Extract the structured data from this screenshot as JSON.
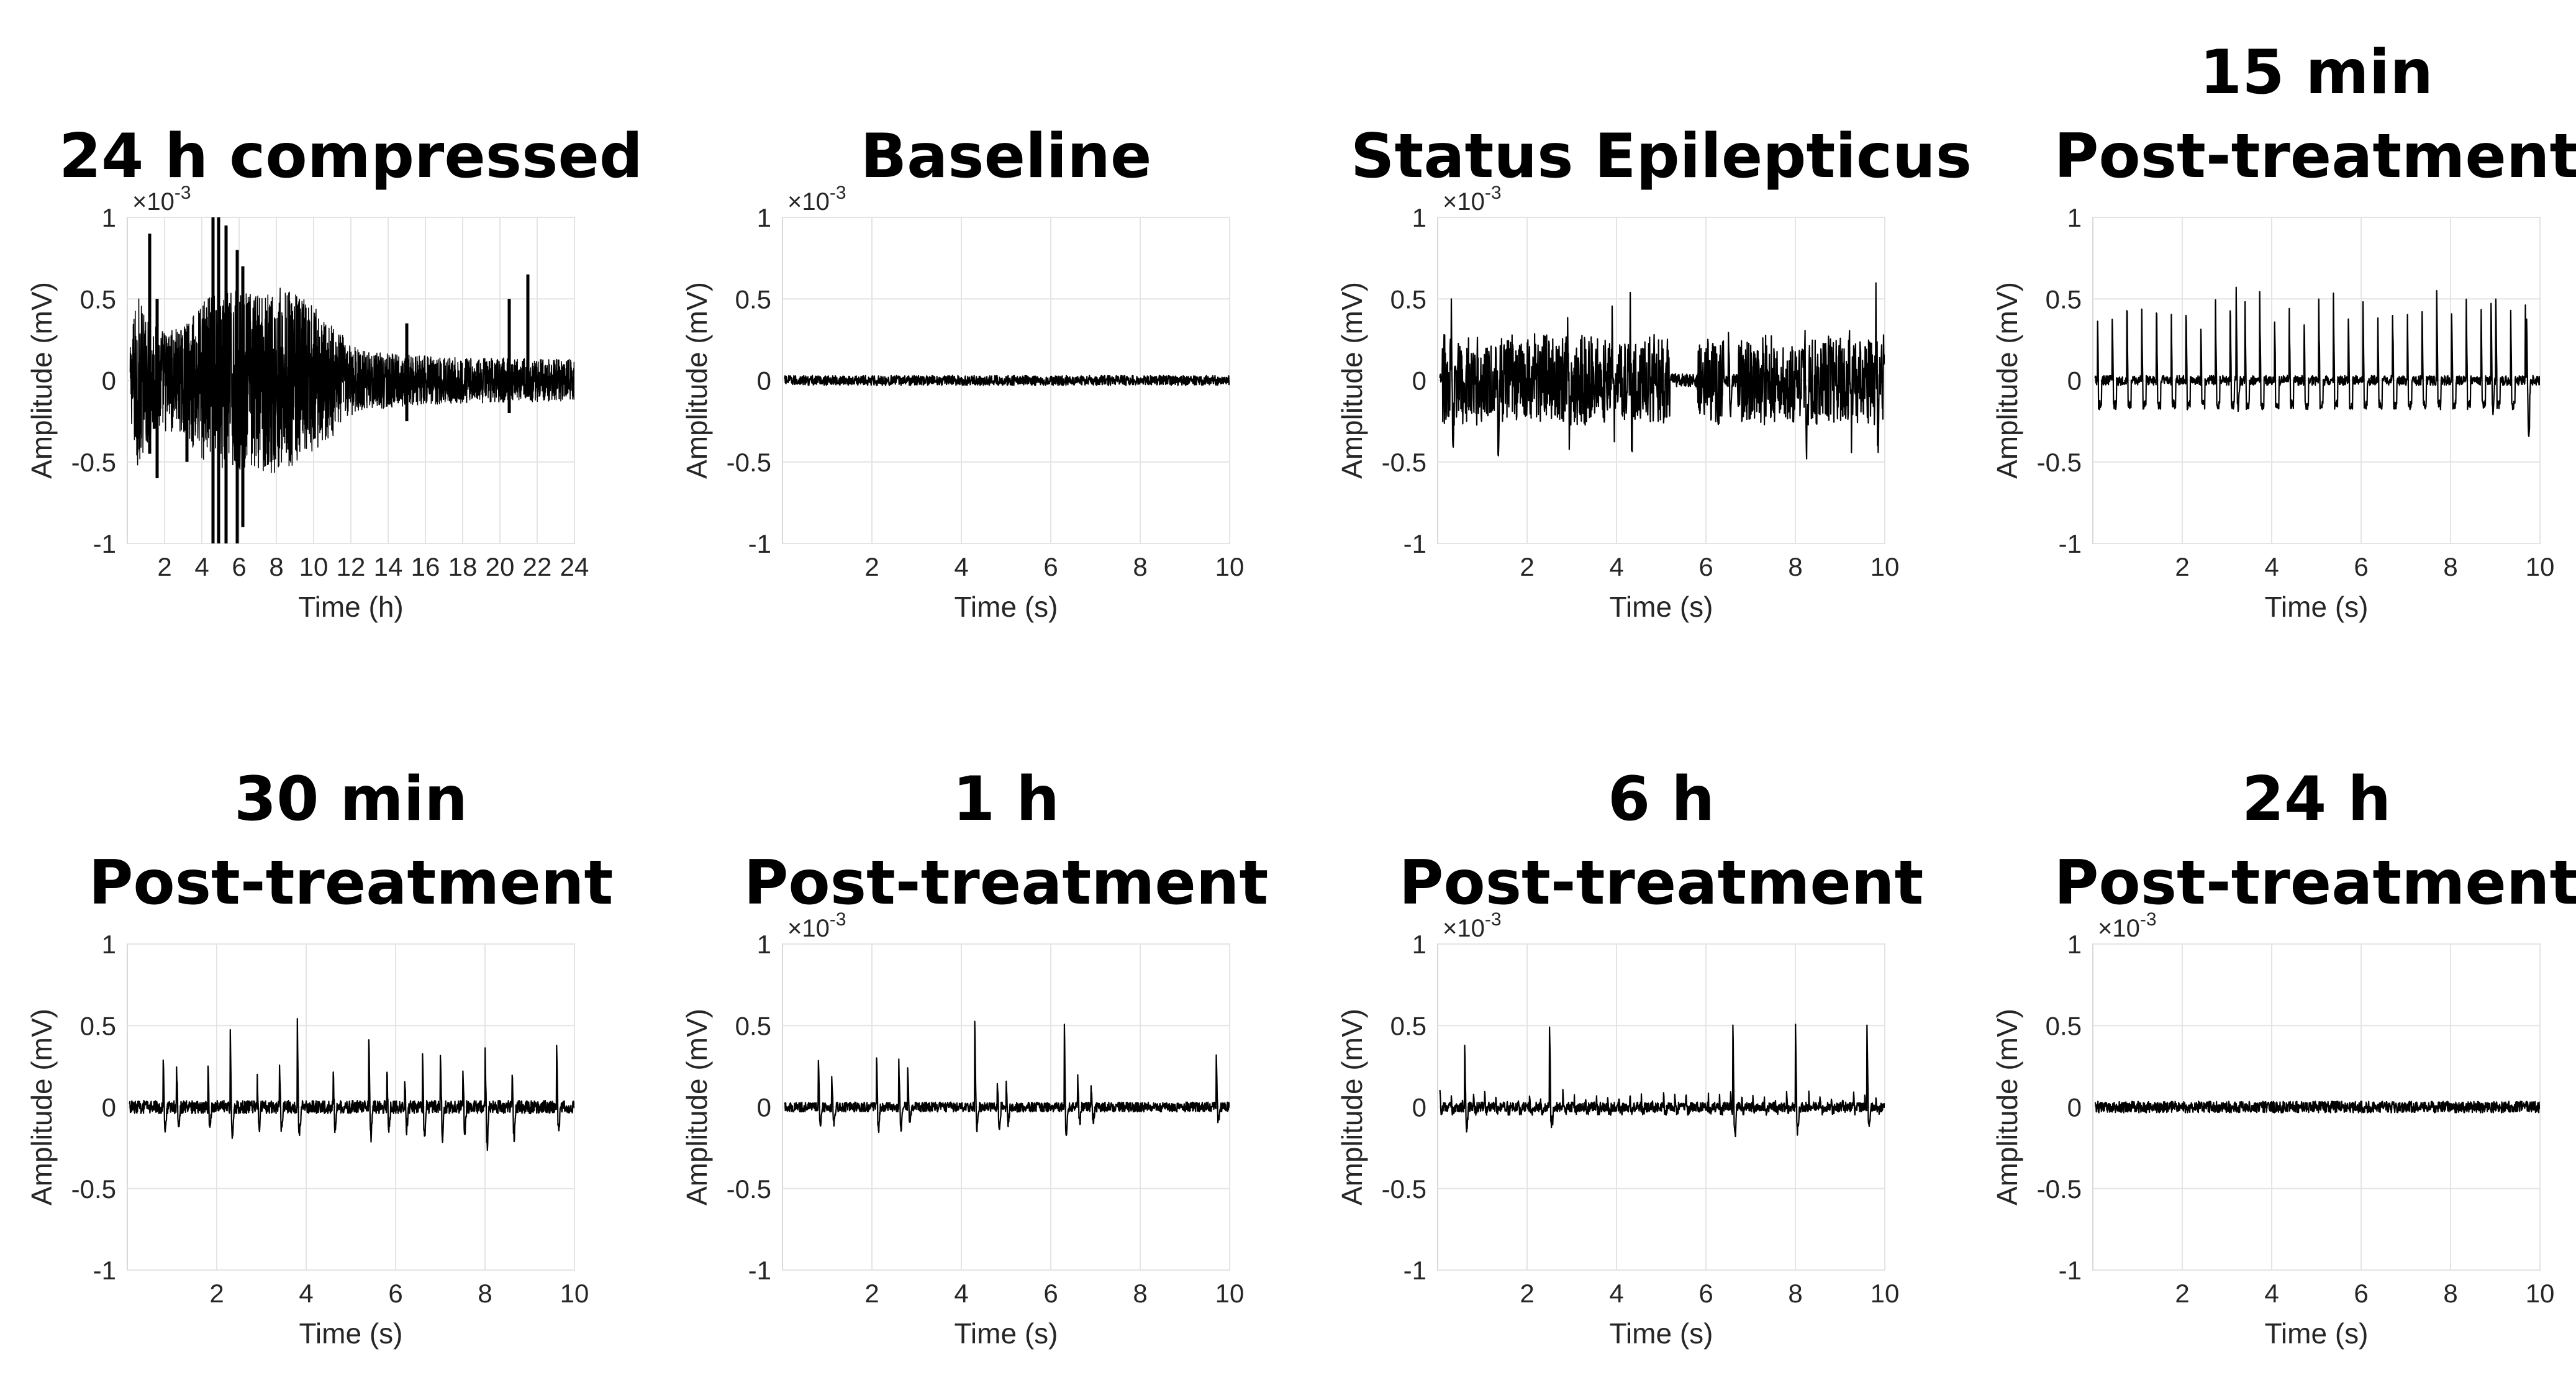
{
  "chart_data": [
    {
      "type": "line",
      "title": [
        "24 h compressed"
      ],
      "xlabel": "Time (h)",
      "ylabel": "Amplitude (mV)",
      "xlim": [
        0,
        24
      ],
      "xticks": [
        2,
        4,
        6,
        8,
        10,
        12,
        14,
        16,
        18,
        20,
        22,
        24
      ],
      "ylim": [
        -1,
        1
      ],
      "yticks": [
        "-1",
        "-0.5",
        "0",
        "0.5",
        "1"
      ],
      "y_multiplier": "×10",
      "y_multiplier_exp": "-3",
      "grid": true,
      "series": [
        {
          "style": "dense-envelope",
          "envelope": {
            "t": [
              0,
              0.5,
              1,
              2,
              3,
              4,
              5,
              6,
              7,
              8,
              9,
              10,
              11,
              12,
              13,
              14,
              16,
              18,
              20,
              22,
              24
            ],
            "amp": [
              0.05,
              0.55,
              0.4,
              0.32,
              0.32,
              0.5,
              0.55,
              0.55,
              0.55,
              0.58,
              0.55,
              0.45,
              0.35,
              0.22,
              0.18,
              0.17,
              0.15,
              0.14,
              0.14,
              0.13,
              0.13
            ]
          },
          "spikes": [
            [
              1.2,
              0.9,
              -0.45
            ],
            [
              4.6,
              1.0,
              -1.0
            ],
            [
              4.9,
              1.0,
              -1.0
            ],
            [
              5.3,
              0.95,
              -1.0
            ],
            [
              5.9,
              0.8,
              -1.0
            ],
            [
              6.2,
              0.7,
              -0.9
            ],
            [
              1.6,
              0.5,
              -0.6
            ],
            [
              3.2,
              0.3,
              -0.5
            ],
            [
              15.0,
              0.35,
              -0.25
            ],
            [
              20.5,
              0.5,
              -0.2
            ],
            [
              21.5,
              0.65,
              -0.1
            ]
          ]
        }
      ]
    },
    {
      "type": "line",
      "title": [
        "Baseline"
      ],
      "xlabel": "Time (s)",
      "ylabel": "Amplitude (mV)",
      "xlim": [
        0,
        10
      ],
      "xticks": [
        2,
        4,
        6,
        8,
        10
      ],
      "ylim": [
        -1,
        1
      ],
      "yticks": [
        "-1",
        "-0.5",
        "0",
        "0.5",
        "1"
      ],
      "y_multiplier": "×10",
      "y_multiplier_exp": "-3",
      "grid": true,
      "series": [
        {
          "style": "trace",
          "noise": 0.03,
          "spikes": []
        }
      ]
    },
    {
      "type": "line",
      "title": [
        "Status Epilepticus"
      ],
      "xlabel": "Time (s)",
      "ylabel": "Amplitude (mV)",
      "xlim": [
        0,
        10
      ],
      "xticks": [
        2,
        4,
        6,
        8,
        10
      ],
      "ylim": [
        -1,
        1
      ],
      "yticks": [
        "-1",
        "-0.5",
        "0",
        "0.5",
        "1"
      ],
      "y_multiplier": "×10",
      "y_multiplier_exp": "-3",
      "grid": true,
      "series": [
        {
          "style": "burst",
          "noise": 0.04,
          "bursts": [
            [
              0.1,
              5.2,
              0.25
            ],
            [
              5.8,
              6.4,
              0.25
            ],
            [
              6.7,
              10,
              0.25
            ]
          ],
          "spikes": [
            [
              0.3,
              0.42,
              -0.3
            ],
            [
              1.3,
              0.4,
              -0.3
            ],
            [
              2.9,
              0.38,
              -0.25
            ],
            [
              3.9,
              0.38,
              -0.2
            ],
            [
              4.3,
              0.4,
              -0.25
            ],
            [
              6.5,
              0.3,
              -0.2
            ],
            [
              8.2,
              0.42,
              -0.3
            ],
            [
              9.2,
              0.45,
              -0.3
            ],
            [
              9.8,
              0.35,
              -0.25
            ]
          ]
        }
      ]
    },
    {
      "type": "line",
      "title": [
        "15 min",
        "Post-treatment"
      ],
      "xlabel": "Time (s)",
      "ylabel": "Amplitude (mV)",
      "xlim": [
        0,
        10
      ],
      "xticks": [
        2,
        4,
        6,
        8,
        10
      ],
      "ylim": [
        -1,
        1
      ],
      "yticks": [
        "-1",
        "-0.5",
        "0",
        "0.5",
        "1"
      ],
      "y_multiplier": "",
      "y_multiplier_exp": "",
      "grid": true,
      "series": [
        {
          "style": "trace",
          "noise": 0.03,
          "periodic": {
            "start": 0.1,
            "period": 0.33,
            "amp": 0.5,
            "neg": -0.15,
            "jitter": 0.15
          },
          "spikes": [
            [
              3.2,
              0.68,
              -0.2
            ],
            [
              8.9,
              0.6,
              -0.2
            ],
            [
              9.7,
              0.58,
              -0.2
            ]
          ]
        }
      ]
    },
    {
      "type": "line",
      "title": [
        "30 min",
        "Post-treatment"
      ],
      "xlabel": "Time (s)",
      "ylabel": "Amplitude (mV)",
      "xlim": [
        0,
        10
      ],
      "xticks": [
        2,
        4,
        6,
        8,
        10
      ],
      "ylim": [
        -1,
        1
      ],
      "yticks": [
        "-1",
        "-0.5",
        "0",
        "0.5",
        "1"
      ],
      "y_multiplier": "",
      "y_multiplier_exp": "",
      "grid": true,
      "series": [
        {
          "style": "trace",
          "noise": 0.04,
          "spikes": [
            [
              0.8,
              0.35,
              -0.15
            ],
            [
              1.1,
              0.25,
              -0.15
            ],
            [
              1.8,
              0.33,
              -0.15
            ],
            [
              2.3,
              0.55,
              -0.2
            ],
            [
              2.9,
              0.25,
              -0.15
            ],
            [
              3.4,
              0.33,
              -0.15
            ],
            [
              3.8,
              0.55,
              -0.2
            ],
            [
              4.6,
              0.25,
              -0.15
            ],
            [
              5.4,
              0.45,
              -0.2
            ],
            [
              5.8,
              0.3,
              -0.15
            ],
            [
              6.2,
              0.2,
              -0.15
            ],
            [
              6.6,
              0.4,
              -0.2
            ],
            [
              7.0,
              0.35,
              -0.2
            ],
            [
              7.5,
              0.3,
              -0.2
            ],
            [
              8.0,
              0.38,
              -0.25
            ],
            [
              8.6,
              0.3,
              -0.2
            ],
            [
              9.6,
              0.4,
              -0.15
            ]
          ]
        }
      ]
    },
    {
      "type": "line",
      "title": [
        "1 h",
        "Post-treatment"
      ],
      "xlabel": "Time (s)",
      "ylabel": "Amplitude (mV)",
      "xlim": [
        0,
        10
      ],
      "xticks": [
        2,
        4,
        6,
        8,
        10
      ],
      "ylim": [
        -1,
        1
      ],
      "yticks": [
        "-1",
        "-0.5",
        "0",
        "0.5",
        "1"
      ],
      "y_multiplier": "×10",
      "y_multiplier_exp": "-3",
      "grid": true,
      "series": [
        {
          "style": "trace",
          "noise": 0.03,
          "spikes": [
            [
              0.8,
              0.35,
              -0.1
            ],
            [
              1.1,
              0.2,
              -0.1
            ],
            [
              2.1,
              0.38,
              -0.15
            ],
            [
              2.6,
              0.3,
              -0.15
            ],
            [
              2.8,
              0.25,
              -0.1
            ],
            [
              4.3,
              0.52,
              -0.15
            ],
            [
              4.8,
              0.2,
              -0.15
            ],
            [
              5.0,
              0.15,
              -0.1
            ],
            [
              6.3,
              0.6,
              -0.2
            ],
            [
              6.6,
              0.2,
              -0.1
            ],
            [
              6.9,
              0.15,
              -0.1
            ],
            [
              9.7,
              0.35,
              -0.1
            ]
          ]
        }
      ]
    },
    {
      "type": "line",
      "title": [
        "6 h",
        "Post-treatment"
      ],
      "xlabel": "Time (s)",
      "ylabel": "Amplitude (mV)",
      "xlim": [
        0,
        10
      ],
      "xticks": [
        2,
        4,
        6,
        8,
        10
      ],
      "ylim": [
        -1,
        1
      ],
      "yticks": [
        "-1",
        "-0.5",
        "0",
        "0.5",
        "1"
      ],
      "y_multiplier": "×10",
      "y_multiplier_exp": "-3",
      "grid": true,
      "series": [
        {
          "style": "trace",
          "noise": 0.03,
          "periodic": {
            "start": 0.05,
            "period": 0.25,
            "amp": 0.08,
            "neg": -0.02,
            "jitter": 0.1
          },
          "spikes": [
            [
              0.6,
              0.5,
              -0.15
            ],
            [
              2.5,
              0.55,
              -0.15
            ],
            [
              6.6,
              0.6,
              -0.2
            ],
            [
              8.0,
              0.58,
              -0.2
            ],
            [
              9.6,
              0.56,
              -0.15
            ]
          ]
        }
      ]
    },
    {
      "type": "line",
      "title": [
        "24 h",
        "Post-treatment"
      ],
      "xlabel": "Time (s)",
      "ylabel": "Amplitude (mV)",
      "xlim": [
        0,
        10
      ],
      "xticks": [
        2,
        4,
        6,
        8,
        10
      ],
      "ylim": [
        -1,
        1
      ],
      "yticks": [
        "-1",
        "-0.5",
        "0",
        "0.5",
        "1"
      ],
      "y_multiplier": "×10",
      "y_multiplier_exp": "-3",
      "grid": true,
      "series": [
        {
          "style": "trace",
          "noise": 0.035,
          "spikes": []
        }
      ]
    }
  ]
}
